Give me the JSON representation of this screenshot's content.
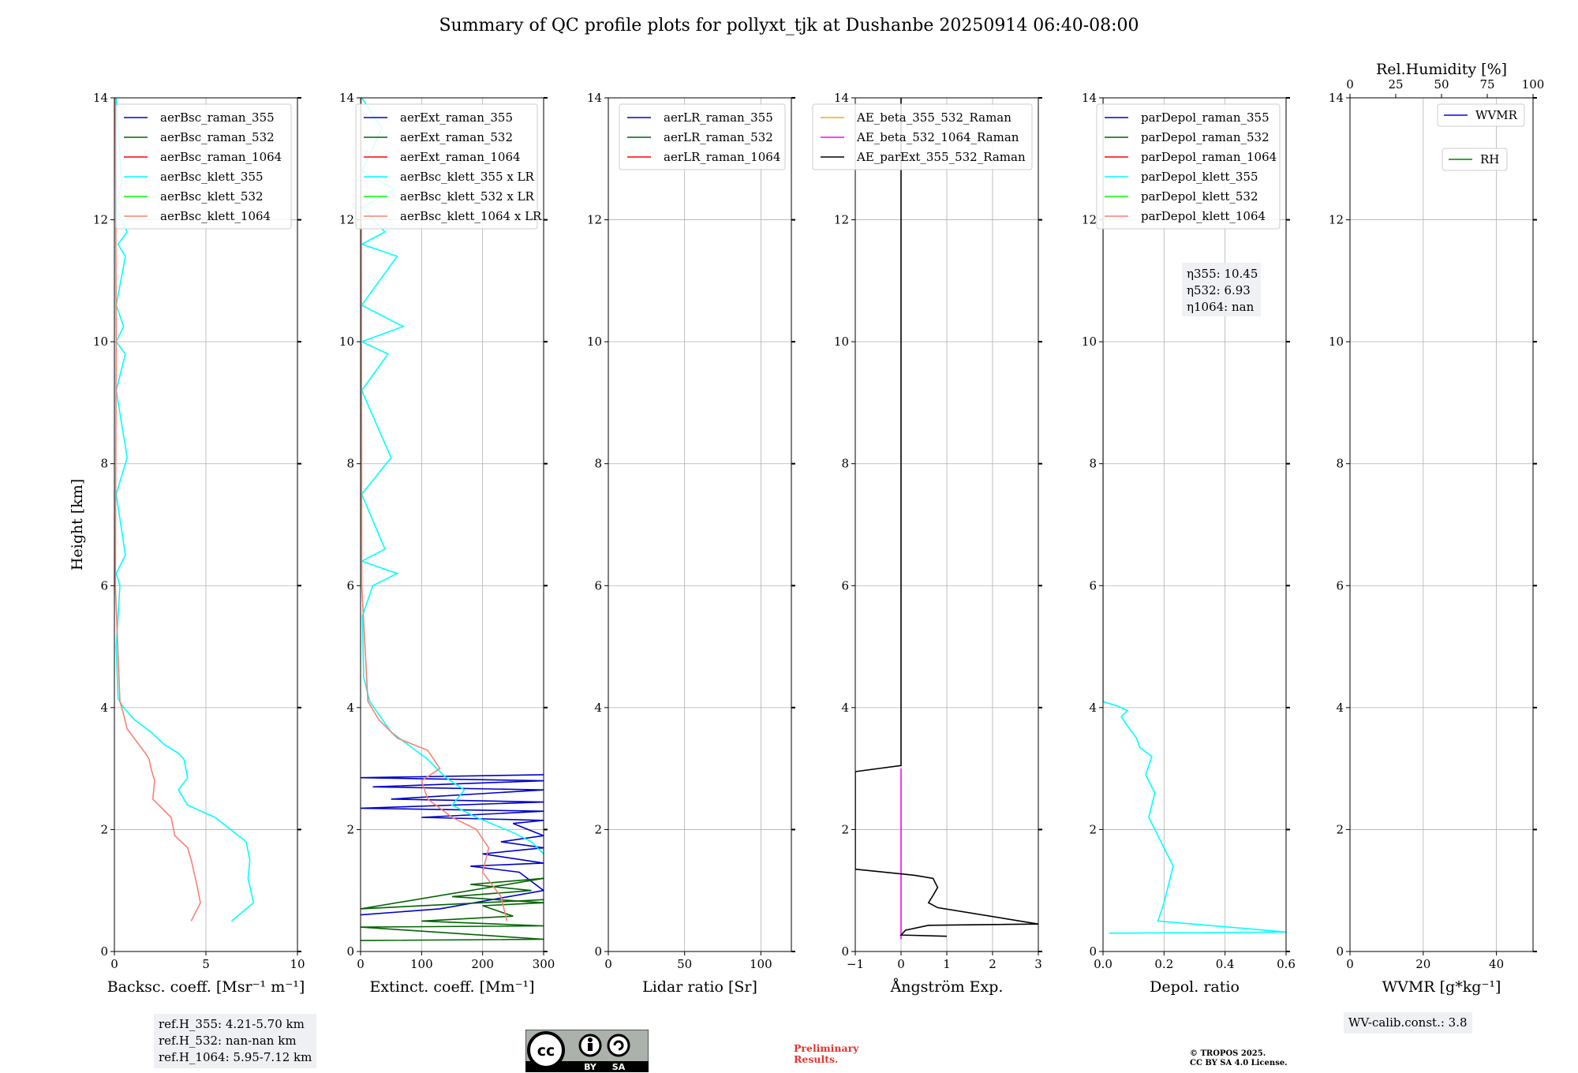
{
  "figure": {
    "title": "Summary of QC profile plots for pollyxt_tjk at Dushanbe 20250914 06:40-08:00"
  },
  "footer": {
    "ref_heights": [
      "ref.H_355: 4.21-5.70 km",
      "ref.H_532: nan-nan km",
      "ref.H_1064: 5.95-7.12 km"
    ],
    "wv_calib": "WV-calib.const.: 3.8",
    "preliminary": [
      "Preliminary",
      "Results."
    ],
    "copyright": [
      "© TROPOS 2025.",
      "CC BY SA 4.0 License."
    ],
    "license_badge": {
      "by": "BY",
      "sa": "SA",
      "icon": "creative-commons-by-sa-icon"
    }
  },
  "colors": {
    "raman_355": "#0000cc",
    "raman_532": "#006400",
    "raman_1064": "#ff0000",
    "klett_355": "#00ffff",
    "klett_532": "#00ff00",
    "klett_1064": "#fa8072",
    "ae_355_532": "#ffa500",
    "ae_532_1064": "#ff00ff",
    "ae_parext": "#000000",
    "wvmr": "#0000ff",
    "rh": "#008000",
    "grid": "#b0b0b0"
  },
  "chart_data": [
    {
      "type": "line",
      "id": "backscatter",
      "xlabel": "Backsc. coeff. [Msr⁻¹ m⁻¹]",
      "ylabel": "Height [km]",
      "xlim": [
        0,
        10
      ],
      "ylim": [
        0,
        14
      ],
      "xticks": [
        "0",
        "5",
        "10"
      ],
      "yticks": [
        "0",
        "2",
        "4",
        "6",
        "8",
        "10",
        "12",
        "14"
      ],
      "grid": true,
      "legend_position": "top-right",
      "series": [
        {
          "name": "aerBsc_raman_355",
          "color": "#0000cc",
          "x": [],
          "y": []
        },
        {
          "name": "aerBsc_raman_532",
          "color": "#006400",
          "x": [],
          "y": []
        },
        {
          "name": "aerBsc_raman_1064",
          "color": "#ff0000",
          "x": [],
          "y": []
        },
        {
          "name": "aerBsc_klett_355",
          "color": "#00ffff",
          "x": [
            6.4,
            7.6,
            7.3,
            7.4,
            7.2,
            5.5,
            4.0,
            3.5,
            4.0,
            3.8,
            3.5,
            2.7,
            2.0,
            1.1,
            0.5,
            0.2,
            0.1,
            0.3,
            0.1,
            0.6,
            0.1,
            0.7,
            0.1,
            0.6,
            0.1,
            0.5,
            0.1,
            0.6,
            0.2,
            0.7,
            0.1,
            0.4,
            0.1
          ],
          "y": [
            0.5,
            0.8,
            1.2,
            1.5,
            1.8,
            2.2,
            2.4,
            2.65,
            2.85,
            3.15,
            3.25,
            3.4,
            3.6,
            3.8,
            4.0,
            4.15,
            5.0,
            6.0,
            6.2,
            6.5,
            7.5,
            8.1,
            9.2,
            9.8,
            10.0,
            10.25,
            10.6,
            11.4,
            11.6,
            11.8,
            12.2,
            12.6,
            14.0
          ]
        },
        {
          "name": "aerBsc_klett_532",
          "color": "#00ff00",
          "x": [],
          "y": []
        },
        {
          "name": "aerBsc_klett_1064",
          "color": "#fa8072",
          "x": [
            4.2,
            4.7,
            4.5,
            4.2,
            4.0,
            3.3,
            3.1,
            2.1,
            2.2,
            2.0,
            1.9,
            1.7,
            1.2,
            0.7,
            0.45,
            0.3,
            0.05,
            0.1,
            0.05
          ],
          "y": [
            0.5,
            0.8,
            1.1,
            1.5,
            1.7,
            1.9,
            2.2,
            2.5,
            2.8,
            3.0,
            3.15,
            3.25,
            3.45,
            3.65,
            3.95,
            4.1,
            6.0,
            10.0,
            14.0
          ]
        }
      ]
    },
    {
      "type": "line",
      "id": "extinction",
      "xlabel": "Extinct. coeff. [Mm⁻¹]",
      "xlim": [
        0,
        300
      ],
      "ylim": [
        0,
        14
      ],
      "xticks": [
        "0",
        "100",
        "200",
        "300"
      ],
      "yticks": [
        "0",
        "2",
        "4",
        "6",
        "8",
        "10",
        "12",
        "14"
      ],
      "grid": true,
      "legend_position": "top-right",
      "series": [
        {
          "name": "aerExt_raman_355",
          "color": "#0000cc",
          "x": [
            0,
            130,
            300,
            260,
            180,
            300,
            200,
            300,
            230,
            300,
            250,
            300,
            100,
            300,
            0,
            300,
            50,
            300,
            20,
            300,
            0,
            300
          ],
          "y": [
            0.6,
            0.7,
            1.0,
            1.3,
            1.4,
            1.45,
            1.6,
            1.7,
            1.8,
            1.9,
            2.1,
            2.15,
            2.2,
            2.3,
            2.35,
            2.45,
            2.5,
            2.65,
            2.7,
            2.8,
            2.85,
            2.9
          ]
        },
        {
          "name": "aerExt_raman_532",
          "color": "#006400",
          "x": [
            0,
            300,
            0,
            300,
            100,
            250,
            200,
            300,
            150,
            280,
            180,
            300,
            0,
            300
          ],
          "y": [
            0.18,
            0.2,
            0.4,
            0.42,
            0.5,
            0.58,
            0.75,
            0.8,
            0.9,
            1.0,
            1.1,
            1.2,
            0.7,
            0.85
          ]
        },
        {
          "name": "aerExt_raman_1064",
          "color": "#ff0000",
          "x": [],
          "y": []
        },
        {
          "name": "aerBsc_klett_355 x LR",
          "color": "#00ffff",
          "x": [
            300,
            280,
            250,
            190,
            150,
            170,
            140,
            110,
            50,
            15,
            5,
            3,
            20,
            60,
            2,
            40,
            2,
            50,
            2,
            45,
            2,
            70,
            2,
            60,
            2,
            40,
            2,
            55,
            2,
            35,
            2
          ],
          "y": [
            1.6,
            1.8,
            1.95,
            2.2,
            2.4,
            2.65,
            2.85,
            3.15,
            3.6,
            4.1,
            4.5,
            5.5,
            6.0,
            6.2,
            6.4,
            6.6,
            7.5,
            8.1,
            9.2,
            9.8,
            10.0,
            10.25,
            10.6,
            11.4,
            11.6,
            11.8,
            12.2,
            12.5,
            12.8,
            13.5,
            14.0
          ]
        },
        {
          "name": "aerBsc_klett_532 x LR",
          "color": "#00ff00",
          "x": [],
          "y": []
        },
        {
          "name": "aerBsc_klett_1064 x LR",
          "color": "#fa8072",
          "x": [
            240,
            230,
            200,
            210,
            190,
            150,
            110,
            100,
            130,
            110,
            60,
            30,
            12,
            2,
            1
          ],
          "y": [
            0.5,
            0.9,
            1.3,
            1.7,
            2.0,
            2.2,
            2.5,
            2.8,
            3.0,
            3.3,
            3.5,
            3.8,
            4.1,
            6.0,
            14.0
          ]
        }
      ]
    },
    {
      "type": "line",
      "id": "lidar_ratio",
      "xlabel": "Lidar ratio [Sr]",
      "xlim": [
        0,
        120
      ],
      "ylim": [
        0,
        14
      ],
      "xticks": [
        "0",
        "50",
        "100"
      ],
      "yticks": [
        "0",
        "2",
        "4",
        "6",
        "8",
        "10",
        "12",
        "14"
      ],
      "grid": true,
      "legend_position": "top-right",
      "series": [
        {
          "name": "aerLR_raman_355",
          "color": "#0000cc",
          "x": [],
          "y": []
        },
        {
          "name": "aerLR_raman_532",
          "color": "#006400",
          "x": [],
          "y": []
        },
        {
          "name": "aerLR_raman_1064",
          "color": "#ff0000",
          "x": [],
          "y": []
        }
      ]
    },
    {
      "type": "line",
      "id": "angstrom",
      "xlabel": "Ångström Exp.",
      "xlim": [
        -1,
        3
      ],
      "ylim": [
        0,
        14
      ],
      "xticks": [
        "−1",
        "0",
        "1",
        "2",
        "3"
      ],
      "yticks": [
        "0",
        "2",
        "4",
        "6",
        "8",
        "10",
        "12",
        "14"
      ],
      "grid": true,
      "legend_position": "top-right",
      "series": [
        {
          "name": "AE_beta_355_532_Raman",
          "color": "#ffa500",
          "x": [],
          "y": []
        },
        {
          "name": "AE_beta_532_1064_Raman",
          "color": "#ff00ff",
          "x": [
            0,
            0
          ],
          "y": [
            0.2,
            3.0
          ]
        },
        {
          "name": "AE_parExt_355_532_Raman",
          "color": "#000000",
          "x": [
            1.0,
            0.0,
            0.1,
            0.6,
            3.0,
            0.8,
            0.6,
            0.7,
            0.8,
            0.7,
            0.3,
            -1.0,
            -1.0,
            0.0,
            0.0,
            0.0
          ],
          "y": [
            0.25,
            0.27,
            0.35,
            0.43,
            0.45,
            0.72,
            0.8,
            0.92,
            1.05,
            1.2,
            1.25,
            1.35,
            2.95,
            3.05,
            4.0,
            14.0
          ]
        }
      ]
    },
    {
      "type": "line",
      "id": "depol",
      "xlabel": "Depol. ratio",
      "xlim": [
        0,
        0.6
      ],
      "ylim": [
        0,
        14
      ],
      "xticks": [
        "0.0",
        "0.2",
        "0.4",
        "0.6"
      ],
      "yticks": [
        "0",
        "2",
        "4",
        "6",
        "8",
        "10",
        "12",
        "14"
      ],
      "grid": true,
      "legend_position": "top-right",
      "annotation": [
        "η355: 10.45",
        "η532: 6.93",
        "η1064: nan"
      ],
      "series": [
        {
          "name": "parDepol_raman_355",
          "color": "#0000cc",
          "x": [],
          "y": []
        },
        {
          "name": "parDepol_raman_532",
          "color": "#006400",
          "x": [],
          "y": []
        },
        {
          "name": "parDepol_raman_1064",
          "color": "#ff0000",
          "x": [],
          "y": []
        },
        {
          "name": "parDepol_klett_355",
          "color": "#00ffff",
          "x": [
            0.02,
            0.6,
            0.18,
            0.2,
            0.23,
            0.19,
            0.15,
            0.17,
            0.14,
            0.16,
            0.12,
            0.11,
            0.08,
            0.06,
            0.08,
            0.05,
            0.0,
            0.0
          ],
          "y": [
            0.3,
            0.32,
            0.5,
            0.8,
            1.4,
            1.8,
            2.2,
            2.6,
            2.9,
            3.2,
            3.35,
            3.5,
            3.7,
            3.85,
            3.95,
            4.02,
            4.1,
            14.0
          ]
        },
        {
          "name": "parDepol_klett_532",
          "color": "#00ff00",
          "x": [],
          "y": []
        },
        {
          "name": "parDepol_klett_1064",
          "color": "#fa8072",
          "x": [],
          "y": []
        }
      ]
    },
    {
      "type": "line",
      "id": "wvmr",
      "xlabel": "WVMR [g*kg⁻¹]",
      "top_xlabel": "Rel.Humidity [%]",
      "xlim": [
        0,
        50
      ],
      "top_xlim": [
        0,
        100
      ],
      "ylim": [
        0,
        14
      ],
      "xticks": [
        "0",
        "20",
        "40"
      ],
      "top_xticks": [
        "0",
        "25",
        "50",
        "75",
        "100"
      ],
      "yticks": [
        "0",
        "2",
        "4",
        "6",
        "8",
        "10",
        "12",
        "14"
      ],
      "grid": true,
      "legend_position": "top-right",
      "series": [
        {
          "name": "WVMR",
          "color": "#0000ff",
          "x": [],
          "y": []
        },
        {
          "name": "RH",
          "color": "#008000",
          "x": [],
          "y": []
        }
      ]
    }
  ]
}
